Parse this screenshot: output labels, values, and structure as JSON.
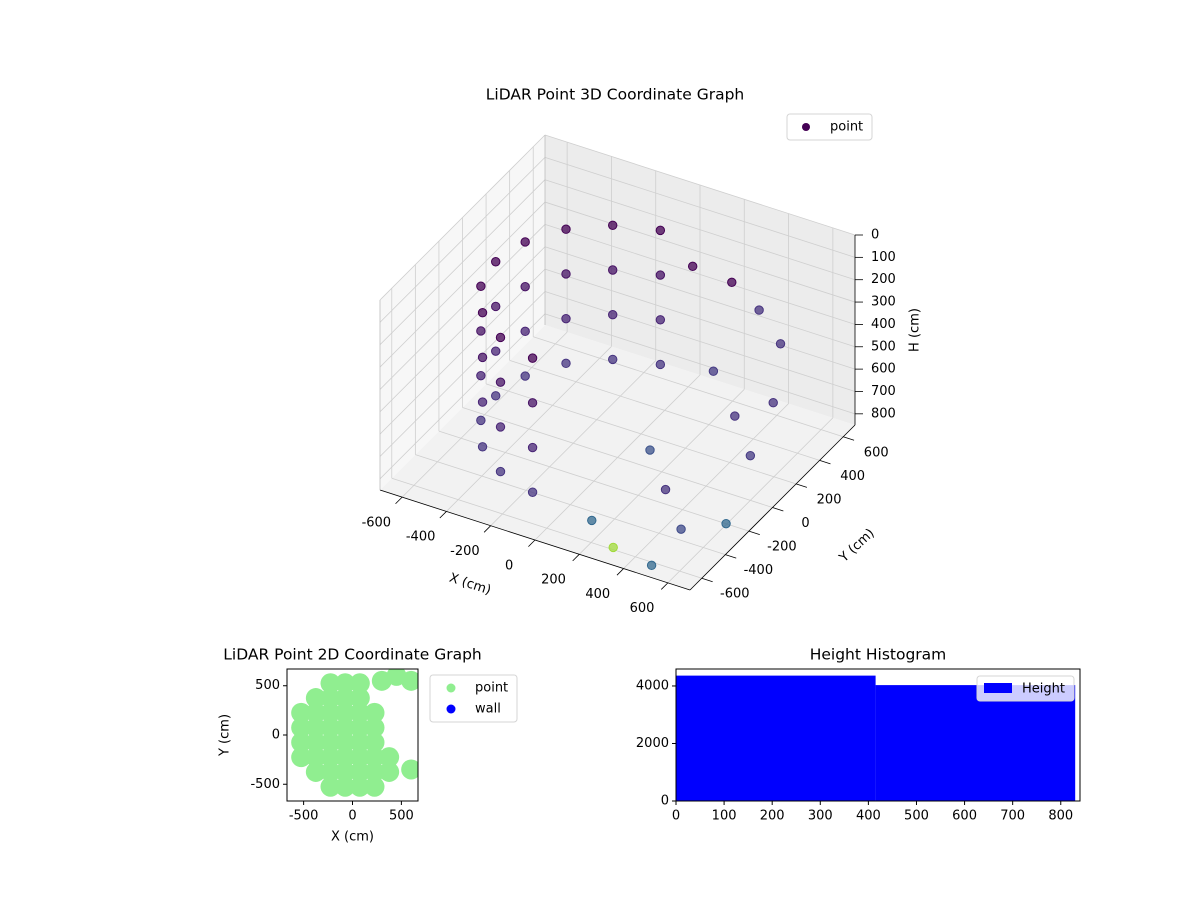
{
  "chart_data": [
    {
      "type": "scatter3d",
      "title": "LiDAR Point 3D Coordinate Graph",
      "xlabel": "X (cm)",
      "ylabel": "Y (cm)",
      "zlabel": "H (cm)",
      "xlim": [
        -700,
        700
      ],
      "ylim": [
        -700,
        700
      ],
      "zlim": [
        850,
        0
      ],
      "xticks": [
        -600,
        -400,
        -200,
        0,
        200,
        400,
        600
      ],
      "yticks": [
        -600,
        -400,
        -200,
        0,
        200,
        400,
        600
      ],
      "zticks": [
        0,
        100,
        200,
        300,
        400,
        500,
        600,
        700,
        800
      ],
      "grid": true,
      "legend": "upper right",
      "series": [
        {
          "name": "point",
          "color": "#440154",
          "x": [
            -95,
            -275,
            -421,
            -517,
            -550,
            -517,
            -421,
            -275,
            -95,
            -95,
            -275,
            -421,
            -517,
            -550,
            -517,
            -421,
            -275,
            -95,
            -95,
            -275,
            -421,
            -517,
            -550,
            -517,
            -421,
            -275,
            -95,
            -95,
            -275,
            -421,
            -517,
            -550,
            -517,
            -421,
            -275,
            -95,
            100,
            250,
            400,
            550,
            300,
            450,
            600,
            200,
            350,
            500,
            650,
            150,
            300,
            500,
            650
          ],
          "y": [
            542,
            476,
            354,
            188,
            0,
            -188,
            -354,
            -476,
            -542,
            542,
            476,
            354,
            188,
            0,
            -188,
            -354,
            -476,
            -542,
            542,
            476,
            354,
            188,
            0,
            -188,
            -354,
            -476,
            -542,
            542,
            476,
            354,
            188,
            0,
            -188,
            -354,
            -476,
            -542,
            450,
            500,
            450,
            350,
            250,
            150,
            0,
            -100,
            -250,
            -400,
            100,
            -500,
            -600,
            -650,
            -300
          ],
          "z": [
            150,
            150,
            150,
            150,
            150,
            150,
            150,
            150,
            150,
            350,
            350,
            350,
            350,
            350,
            350,
            350,
            350,
            350,
            550,
            550,
            550,
            550,
            550,
            550,
            550,
            550,
            550,
            750,
            750,
            750,
            750,
            750,
            750,
            750,
            750,
            750,
            200,
            250,
            300,
            350,
            500,
            600,
            650,
            700,
            750,
            800,
            450,
            820,
            840,
            830,
            780
          ],
          "colors": [
            "#440154",
            "#440154",
            "#440154",
            "#440154",
            "#440154",
            "#440154",
            "#440154",
            "#440154",
            "#440154",
            "#471365",
            "#471365",
            "#471365",
            "#471365",
            "#471365",
            "#471365",
            "#471365",
            "#471365",
            "#471365",
            "#482475",
            "#482475",
            "#482475",
            "#482475",
            "#482475",
            "#482475",
            "#482475",
            "#482475",
            "#482475",
            "#463480",
            "#463480",
            "#463480",
            "#463480",
            "#463480",
            "#463480",
            "#463480",
            "#463480",
            "#463480",
            "#440154",
            "#440154",
            "#46327e",
            "#46327e",
            "#443983",
            "#46327e",
            "#443983",
            "#3b528b",
            "#46327e",
            "#3e4a89",
            "#46327e",
            "#31688e",
            "#a0da39",
            "#31688e",
            "#31688e"
          ]
        }
      ]
    },
    {
      "type": "scatter",
      "title": "LiDAR Point 2D Coordinate Graph",
      "xlabel": "X (cm)",
      "ylabel": "Y (cm)",
      "xlim": [
        -670,
        670
      ],
      "ylim": [
        -670,
        670
      ],
      "xticks": [
        -500,
        0,
        500
      ],
      "yticks": [
        -500,
        0,
        500
      ],
      "legend": "outside upper right",
      "series": [
        {
          "name": "point",
          "color": "#90ee90",
          "x": [
            -525,
            -525,
            -525,
            -525,
            -375,
            -375,
            -375,
            -375,
            -375,
            -375,
            -225,
            -225,
            -225,
            -225,
            -225,
            -225,
            -225,
            -225,
            -75,
            -75,
            -75,
            -75,
            -75,
            -75,
            -75,
            -75,
            75,
            75,
            75,
            75,
            75,
            75,
            75,
            75,
            225,
            225,
            225,
            225,
            225,
            225,
            375,
            375,
            300,
            450,
            600,
            600
          ],
          "y": [
            -225,
            -75,
            75,
            225,
            -375,
            -225,
            -75,
            75,
            225,
            375,
            -525,
            -375,
            -225,
            -75,
            75,
            225,
            375,
            525,
            -525,
            -375,
            -225,
            -75,
            75,
            225,
            375,
            525,
            -525,
            -375,
            -225,
            -75,
            75,
            225,
            375,
            525,
            -525,
            -375,
            -225,
            -75,
            75,
            225,
            -375,
            -225,
            550,
            600,
            550,
            -350
          ]
        },
        {
          "name": "wall",
          "color": "#0000ff",
          "x": [],
          "y": []
        }
      ]
    },
    {
      "type": "histogram",
      "title": "Height Histogram",
      "bins": [
        0,
        415,
        830
      ],
      "xlim": [
        0,
        840
      ],
      "ylim": [
        0,
        4590
      ],
      "xticks": [
        0,
        100,
        200,
        300,
        400,
        500,
        600,
        700,
        800
      ],
      "yticks": [
        0,
        2000,
        4000
      ],
      "legend": "upper right",
      "series": [
        {
          "name": "Height",
          "color": "#0000ff",
          "values": [
            4360,
            4030
          ]
        }
      ]
    }
  ]
}
